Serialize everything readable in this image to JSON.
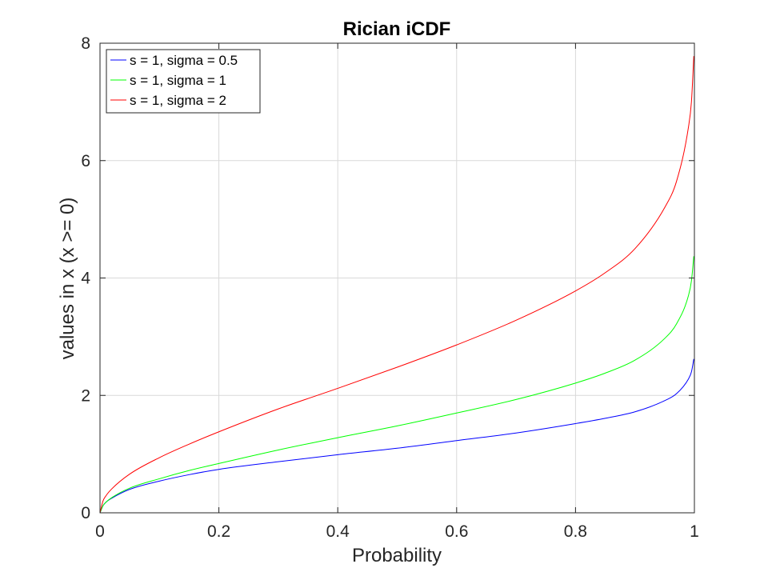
{
  "chart_data": {
    "type": "line",
    "title": "Rician iCDF",
    "xlabel": "Probability",
    "ylabel": "values in x (x >= 0)",
    "xlim": [
      0,
      1
    ],
    "ylim": [
      0,
      8
    ],
    "xticks": [
      0,
      0.2,
      0.4,
      0.6,
      0.8,
      1
    ],
    "xtick_labels": [
      "0",
      "0.2",
      "0.4",
      "0.6",
      "0.8",
      "1"
    ],
    "yticks": [
      0,
      2,
      4,
      6,
      8
    ],
    "ytick_labels": [
      "0",
      "2",
      "4",
      "6",
      "8"
    ],
    "grid": true,
    "legend_position": "top-left",
    "series": [
      {
        "name": "s = 1, sigma = 0.5",
        "color": "#0000ff",
        "x": [
          0,
          0.005,
          0.01,
          0.02,
          0.05,
          0.1,
          0.15,
          0.2,
          0.3,
          0.4,
          0.5,
          0.6,
          0.7,
          0.8,
          0.85,
          0.9,
          0.95,
          0.97,
          0.99,
          0.995,
          0.999
        ],
        "y": [
          0,
          0.12,
          0.18,
          0.25,
          0.4,
          0.54,
          0.65,
          0.74,
          0.87,
          0.99,
          1.1,
          1.23,
          1.36,
          1.52,
          1.61,
          1.72,
          1.91,
          2.03,
          2.28,
          2.4,
          2.62
        ]
      },
      {
        "name": "s = 1, sigma = 1",
        "color": "#00ff00",
        "x": [
          0,
          0.005,
          0.01,
          0.02,
          0.05,
          0.1,
          0.15,
          0.2,
          0.3,
          0.4,
          0.5,
          0.6,
          0.7,
          0.8,
          0.85,
          0.9,
          0.95,
          0.97,
          0.99,
          0.995,
          0.999
        ],
        "y": [
          0,
          0.12,
          0.18,
          0.26,
          0.42,
          0.58,
          0.72,
          0.84,
          1.07,
          1.28,
          1.48,
          1.7,
          1.93,
          2.21,
          2.38,
          2.6,
          2.97,
          3.22,
          3.7,
          3.95,
          4.37
        ]
      },
      {
        "name": "s = 1, sigma = 2",
        "color": "#ff0000",
        "x": [
          0,
          0.005,
          0.01,
          0.02,
          0.05,
          0.1,
          0.15,
          0.2,
          0.3,
          0.4,
          0.5,
          0.6,
          0.7,
          0.8,
          0.85,
          0.9,
          0.95,
          0.97,
          0.99,
          0.995,
          0.999
        ],
        "y": [
          0,
          0.2,
          0.29,
          0.41,
          0.66,
          0.94,
          1.17,
          1.38,
          1.77,
          2.12,
          2.48,
          2.86,
          3.28,
          3.78,
          4.09,
          4.5,
          5.2,
          5.65,
          6.57,
          7.0,
          7.78
        ]
      }
    ]
  }
}
